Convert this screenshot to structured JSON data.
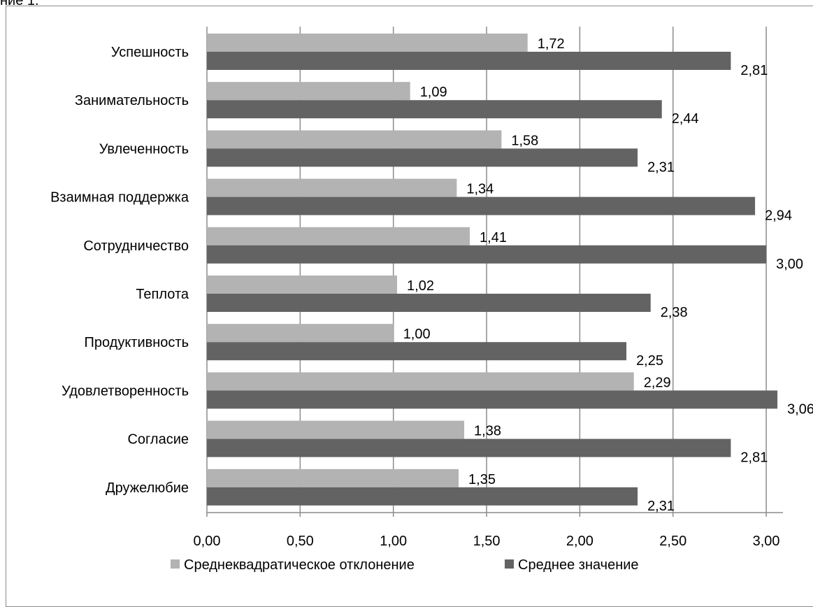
{
  "page_fragment": "ние 1.",
  "chart_data": {
    "type": "bar",
    "orientation": "horizontal",
    "categories": [
      "Успешность",
      "Занимательность",
      "Увлеченность",
      "Взаимная поддержка",
      "Сотрудничество",
      "Теплота",
      "Продуктивность",
      "Удовлетворенность",
      "Согласие",
      "Дружелюбие"
    ],
    "series": [
      {
        "name": "Среднеквадратическое отклонение",
        "color": "#b3b3b3",
        "values": [
          1.72,
          1.09,
          1.58,
          1.34,
          1.41,
          1.02,
          1.0,
          2.29,
          1.38,
          1.35
        ],
        "labels": [
          "1,72",
          "1,09",
          "1,58",
          "1,34",
          "1,41",
          "1,02",
          "1,00",
          "2,29",
          "1,38",
          "1,35"
        ]
      },
      {
        "name": "Среднее значение",
        "color": "#636363",
        "values": [
          2.81,
          2.44,
          2.31,
          2.94,
          3.0,
          2.38,
          2.25,
          3.06,
          2.81,
          2.31
        ],
        "labels": [
          "2,81",
          "2,44",
          "2,31",
          "2,94",
          "3,00",
          "2,38",
          "2,25",
          "3,06",
          "2,81",
          "2,31"
        ]
      }
    ],
    "xlim": [
      0,
      3.1
    ],
    "ticks": [
      0,
      0.5,
      1.0,
      1.5,
      2.0,
      2.5,
      3.0
    ],
    "tick_labels": [
      "0,00",
      "0,50",
      "1,00",
      "1,50",
      "2,00",
      "2,50",
      "3,00"
    ],
    "grid": true,
    "legend_position": "bottom",
    "title": "",
    "xlabel": "",
    "ylabel": ""
  }
}
